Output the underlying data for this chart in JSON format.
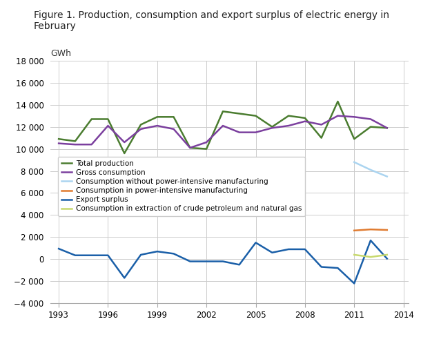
{
  "title": "Figure 1. Production, consumption and export surplus of electric energy in\nFebruary",
  "ylabel": "GWh",
  "xlim": [
    1993,
    2014
  ],
  "ylim": [
    -4000,
    18000
  ],
  "yticks": [
    -4000,
    -2000,
    0,
    2000,
    4000,
    6000,
    8000,
    10000,
    12000,
    14000,
    16000,
    18000
  ],
  "xticks": [
    1993,
    1996,
    1999,
    2002,
    2005,
    2008,
    2011,
    2014
  ],
  "years": [
    1993,
    1994,
    1995,
    1996,
    1997,
    1998,
    1999,
    2000,
    2001,
    2002,
    2003,
    2004,
    2005,
    2006,
    2007,
    2008,
    2009,
    2010,
    2011,
    2012,
    2013
  ],
  "total_production": [
    10900,
    10700,
    12700,
    12700,
    9600,
    12200,
    12900,
    12900,
    10100,
    10000,
    13400,
    13200,
    13000,
    12000,
    13000,
    12800,
    11000,
    14300,
    10900,
    12000,
    11900
  ],
  "gross_consumption": [
    10500,
    10400,
    10400,
    12100,
    10600,
    11800,
    12100,
    11800,
    10100,
    10600,
    12100,
    11500,
    11500,
    11900,
    12100,
    12500,
    12200,
    13000,
    12900,
    12700,
    11900
  ],
  "consumption_without_power": [
    null,
    null,
    null,
    null,
    null,
    null,
    null,
    null,
    null,
    null,
    null,
    null,
    null,
    null,
    null,
    null,
    null,
    null,
    8800,
    8100,
    7500
  ],
  "consumption_power_intensive": [
    null,
    null,
    null,
    null,
    null,
    null,
    null,
    null,
    null,
    null,
    null,
    null,
    null,
    null,
    null,
    null,
    null,
    null,
    2600,
    2700,
    2650
  ],
  "export_surplus": [
    950,
    350,
    350,
    350,
    -1700,
    400,
    700,
    500,
    -200,
    -200,
    -200,
    -500,
    1500,
    600,
    900,
    900,
    -700,
    -800,
    -2200,
    1700,
    50
  ],
  "consumption_extraction": [
    null,
    null,
    null,
    null,
    null,
    null,
    null,
    null,
    null,
    null,
    null,
    null,
    null,
    null,
    null,
    null,
    null,
    null,
    400,
    200,
    400
  ],
  "colors": {
    "total_production": "#4a7c2f",
    "gross_consumption": "#7b3f9e",
    "consumption_without_power": "#aad4f0",
    "consumption_power_intensive": "#e07b30",
    "export_surplus": "#1a5fa8",
    "consumption_extraction": "#c8d96e"
  },
  "legend_labels": [
    "Total production",
    "Gross consumption",
    "Consumption without power-intensive manufacturing",
    "Consumption in power-intensive manufacturing",
    "Export surplus",
    "Consumption in extraction of crude petroleum and natural gas"
  ]
}
